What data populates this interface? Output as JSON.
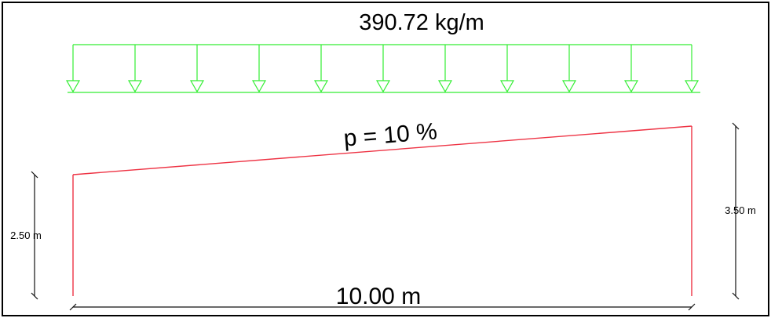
{
  "diagram": {
    "load_label": "390.72 kg/m",
    "slope_label": "p = 10 %",
    "span_label": "10.00 m",
    "left_height_label": "2.50 m",
    "right_height_label": "3.50 m"
  },
  "colors": {
    "load": "#33ee33",
    "frame_members": "#ee3344",
    "dimension": "#111111",
    "border": "#000000"
  }
}
